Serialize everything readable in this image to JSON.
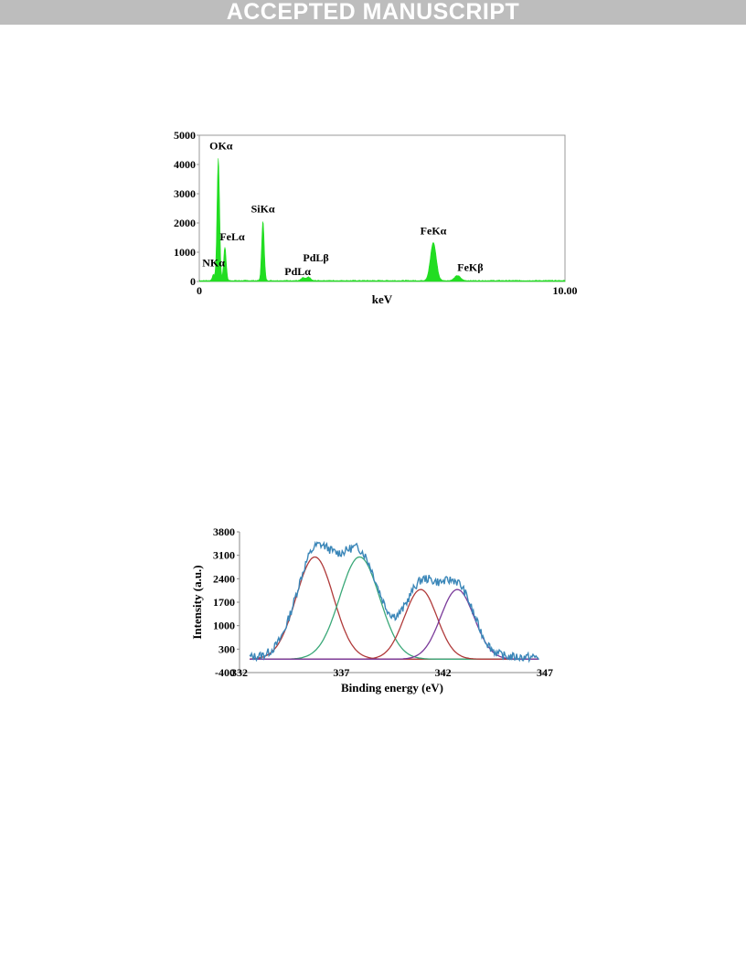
{
  "header": {
    "banner": "ACCEPTED MANUSCRIPT"
  },
  "chart_data": [
    {
      "type": "area",
      "title": "",
      "xlabel": "keV",
      "ylabel": "",
      "xlim": [
        0,
        10
      ],
      "ylim": [
        0,
        5000
      ],
      "x_tick_labels": [
        "0",
        "10.00"
      ],
      "y_ticks": [
        0,
        1000,
        2000,
        3000,
        4000,
        5000
      ],
      "grid": false,
      "color": "#22dd22",
      "peaks": [
        {
          "label": "NKα",
          "x": 0.39,
          "y": 200
        },
        {
          "label": "OKα",
          "x": 0.52,
          "y": 4200
        },
        {
          "label": "FeLα",
          "x": 0.7,
          "y": 1150
        },
        {
          "label": "SiKα",
          "x": 1.74,
          "y": 2050
        },
        {
          "label": "PdLα",
          "x": 2.84,
          "y": 100
        },
        {
          "label": "PdLβ",
          "x": 2.99,
          "y": 120
        },
        {
          "label": "FeKα",
          "x": 6.4,
          "y": 1300
        },
        {
          "label": "FeKβ",
          "x": 7.06,
          "y": 170
        }
      ]
    },
    {
      "type": "line",
      "title": "",
      "xlabel": "Binding energy (eV)",
      "ylabel": "Intensity (a.u.)",
      "xlim": [
        332,
        347
      ],
      "ylim": [
        -400,
        3800
      ],
      "x_ticks": [
        332,
        337,
        342,
        347
      ],
      "y_ticks": [
        -400,
        300,
        1000,
        1700,
        2400,
        3100,
        3800
      ],
      "grid": false,
      "series": [
        {
          "type": "measured",
          "color": "#3a86b8"
        },
        {
          "type": "fit",
          "center": 335.7,
          "height": 3050,
          "sigma": 0.92,
          "color": "#b03a3a"
        },
        {
          "type": "fit",
          "center": 337.9,
          "height": 3050,
          "sigma": 0.98,
          "color": "#3aa878"
        },
        {
          "type": "fit",
          "center": 340.9,
          "height": 2080,
          "sigma": 0.8,
          "color": "#b03a3a"
        },
        {
          "type": "fit",
          "center": 342.7,
          "height": 2080,
          "sigma": 0.82,
          "color": "#7a3a9a"
        }
      ],
      "baseline": 0
    }
  ]
}
